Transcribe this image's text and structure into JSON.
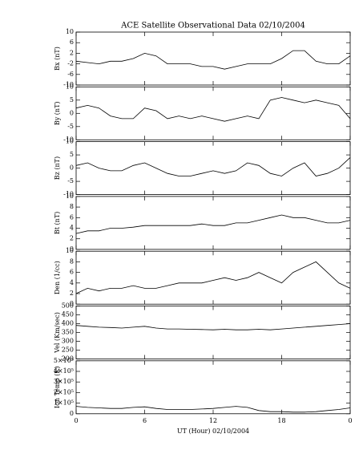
{
  "chart_data": [
    {
      "type": "line",
      "title": "ACE Satellite Observational Data   02/10/2004",
      "ylabel": "Bx (nT)",
      "x": [
        0,
        1,
        2,
        3,
        4,
        5,
        6,
        7,
        8,
        9,
        10,
        11,
        12,
        13,
        14,
        15,
        16,
        17,
        18,
        19,
        20,
        21,
        22,
        23,
        24
      ],
      "values": [
        -1,
        -1.5,
        -2,
        -1,
        -1,
        0,
        2,
        1,
        -2,
        -2,
        -2,
        -3,
        -3,
        -4,
        -3,
        -2,
        -2,
        -2,
        0,
        3,
        3,
        -1,
        -2,
        -2,
        1
      ],
      "color": "#000000",
      "xlim": [
        0,
        24
      ],
      "xticks": [
        0,
        6,
        12,
        18,
        {
          "value": 24,
          "label": "0"
        }
      ],
      "ylim": [
        -10,
        10
      ],
      "yticks": [
        10,
        6,
        2,
        -2,
        -6,
        -10
      ]
    },
    {
      "type": "line",
      "ylabel": "By (nT)",
      "x": [
        0,
        1,
        2,
        3,
        4,
        5,
        6,
        7,
        8,
        9,
        10,
        11,
        12,
        13,
        14,
        15,
        16,
        17,
        18,
        19,
        20,
        21,
        22,
        23,
        24
      ],
      "values": [
        2,
        3,
        2,
        -1,
        -2,
        -2,
        2,
        1,
        -2,
        -1,
        -2,
        -1,
        -2,
        -3,
        -2,
        -1,
        -2,
        5,
        6,
        5,
        4,
        5,
        4,
        3,
        -2
      ],
      "color": "#000000",
      "xlim": [
        0,
        24
      ],
      "xticks": [
        0,
        6,
        12,
        18,
        {
          "value": 24,
          "label": "0"
        }
      ],
      "ylim": [
        -10,
        10
      ],
      "yticks": [
        10,
        5,
        0,
        -5,
        -10
      ]
    },
    {
      "type": "line",
      "ylabel": "Bz (nT)",
      "x": [
        0,
        1,
        2,
        3,
        4,
        5,
        6,
        7,
        8,
        9,
        10,
        11,
        12,
        13,
        14,
        15,
        16,
        17,
        18,
        19,
        20,
        21,
        22,
        23,
        24
      ],
      "values": [
        1,
        2,
        0,
        -1,
        -1,
        1,
        2,
        0,
        -2,
        -3,
        -3,
        -2,
        -1,
        -2,
        -1,
        2,
        1,
        -2,
        -3,
        0,
        2,
        -3,
        -2,
        0,
        4
      ],
      "color": "#000000",
      "xlim": [
        0,
        24
      ],
      "xticks": [
        0,
        6,
        12,
        18,
        {
          "value": 24,
          "label": "0"
        }
      ],
      "ylim": [
        -10,
        10
      ],
      "yticks": [
        10,
        5,
        0,
        -5,
        -10
      ]
    },
    {
      "type": "line",
      "ylabel": "Bt (nT)",
      "x": [
        0,
        1,
        2,
        3,
        4,
        5,
        6,
        7,
        8,
        9,
        10,
        11,
        12,
        13,
        14,
        15,
        16,
        17,
        18,
        19,
        20,
        21,
        22,
        23,
        24
      ],
      "values": [
        3,
        3.5,
        3.5,
        4,
        4,
        4.2,
        4.5,
        4.5,
        4.5,
        4.5,
        4.5,
        4.8,
        4.5,
        4.5,
        5,
        5,
        5.5,
        6,
        6.5,
        6,
        6,
        5.5,
        5,
        5,
        5.5
      ],
      "color": "#000000",
      "xlim": [
        0,
        24
      ],
      "xticks": [
        0,
        6,
        12,
        18,
        {
          "value": 24,
          "label": "0"
        }
      ],
      "ylim": [
        0,
        10
      ],
      "yticks": [
        10,
        8,
        6,
        4,
        2,
        0
      ]
    },
    {
      "type": "line",
      "ylabel": "Den (1/cc)",
      "x": [
        0,
        1,
        2,
        3,
        4,
        5,
        6,
        7,
        8,
        9,
        10,
        11,
        12,
        13,
        14,
        15,
        16,
        17,
        18,
        19,
        20,
        21,
        22,
        23,
        24
      ],
      "values": [
        2,
        3,
        2.5,
        3,
        3,
        3.5,
        3,
        3,
        3.5,
        4,
        4,
        4,
        4.5,
        5,
        4.5,
        5,
        6,
        5,
        4,
        6,
        7,
        8,
        6,
        4,
        3
      ],
      "color": "#000000",
      "xlim": [
        0,
        24
      ],
      "xticks": [
        0,
        6,
        12,
        18,
        {
          "value": 24,
          "label": "0"
        }
      ],
      "ylim": [
        0,
        10
      ],
      "yticks": [
        10,
        8,
        6,
        4,
        2,
        0
      ]
    },
    {
      "type": "line",
      "ylabel": "Vel (Km/sec)",
      "x": [
        0,
        1,
        2,
        3,
        4,
        5,
        6,
        7,
        8,
        9,
        10,
        11,
        12,
        13,
        14,
        15,
        16,
        17,
        18,
        19,
        20,
        21,
        22,
        23,
        24
      ],
      "values": [
        390,
        385,
        380,
        378,
        375,
        380,
        385,
        375,
        370,
        370,
        368,
        367,
        365,
        368,
        365,
        365,
        368,
        365,
        370,
        375,
        380,
        385,
        390,
        395,
        400
      ],
      "color": "#000000",
      "xlim": [
        0,
        24
      ],
      "xticks": [
        0,
        6,
        12,
        18,
        {
          "value": 24,
          "label": "0"
        }
      ],
      "ylim": [
        200,
        500
      ],
      "yticks": [
        500,
        450,
        400,
        350,
        300,
        250,
        200
      ]
    },
    {
      "type": "line",
      "ylabel": "Ion Temp (K)",
      "xlabel": "UT (Hour)   02/10/2004",
      "x": [
        0,
        1,
        2,
        3,
        4,
        5,
        6,
        7,
        8,
        9,
        10,
        11,
        12,
        13,
        14,
        15,
        16,
        17,
        18,
        19,
        20,
        21,
        22,
        23,
        24
      ],
      "values": [
        70000,
        60000,
        55000,
        50000,
        50000,
        60000,
        65000,
        50000,
        40000,
        40000,
        40000,
        45000,
        50000,
        60000,
        70000,
        60000,
        30000,
        20000,
        20000,
        15000,
        15000,
        20000,
        30000,
        40000,
        55000
      ],
      "color": "#000000",
      "xlim": [
        0,
        24
      ],
      "xticks": [
        0,
        6,
        12,
        18,
        {
          "value": 24,
          "label": "0"
        }
      ],
      "ylim": [
        0,
        500000
      ],
      "yticks": [
        {
          "value": 500000,
          "label": "5×10⁵"
        },
        {
          "value": 400000,
          "label": "4×10⁵"
        },
        {
          "value": 300000,
          "label": "3×10⁵"
        },
        {
          "value": 200000,
          "label": "2×10⁵"
        },
        {
          "value": 100000,
          "label": "1×10⁵"
        },
        0
      ]
    }
  ]
}
